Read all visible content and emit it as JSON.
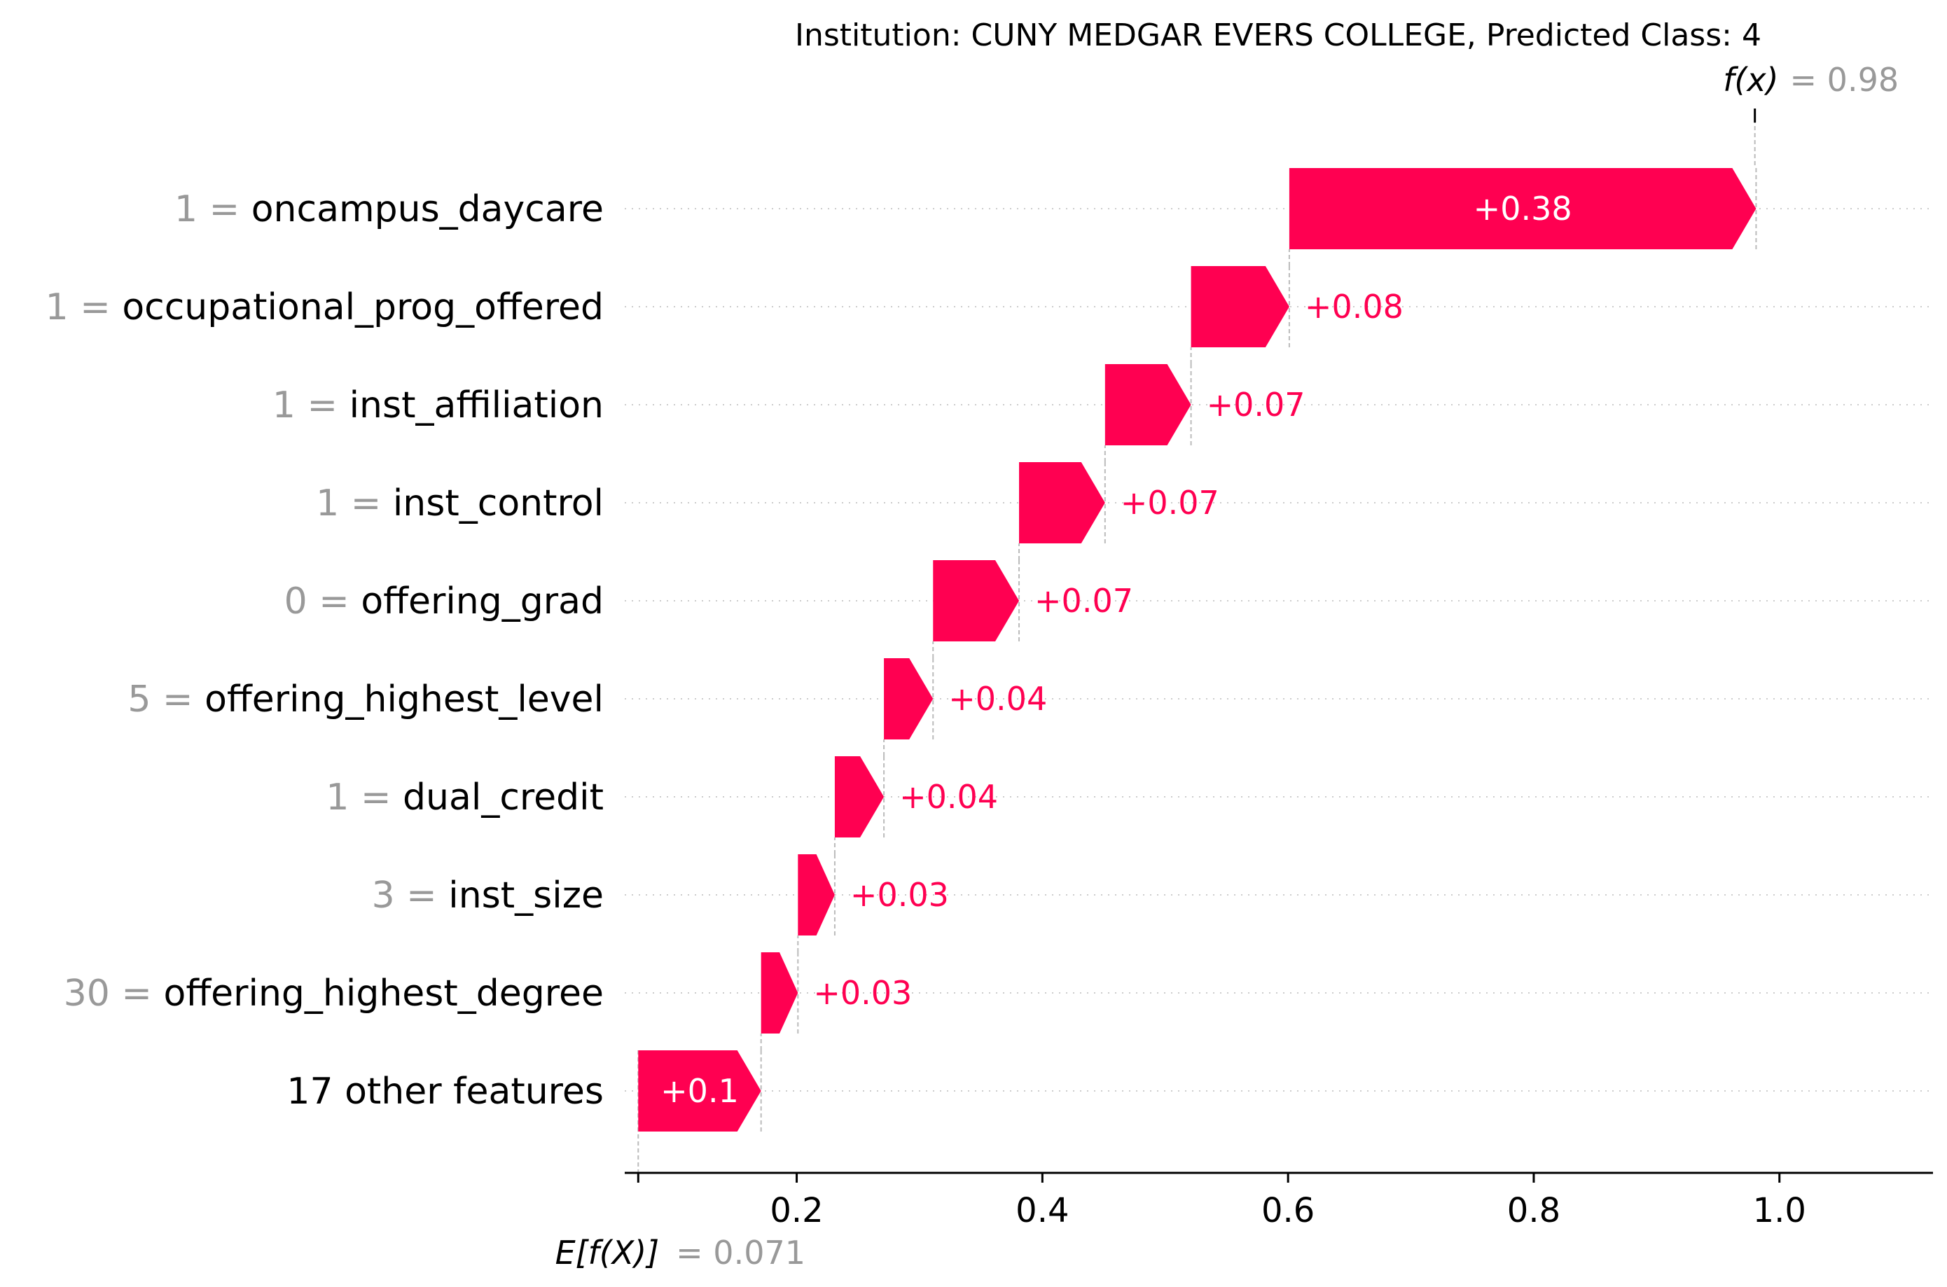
{
  "chart_data": {
    "type": "waterfall",
    "title": "Institution: CUNY MEDGAR EVERS COLLEGE, Predicted Class: 4",
    "base_value": 0.071,
    "base_label": "E[f(X)]",
    "base_value_text": "= 0.071",
    "output_value": 0.98,
    "output_label": "f(x)",
    "output_value_text": "= 0.98",
    "features": [
      {
        "value": "1",
        "name": "oncampus_daycare",
        "contribution": 0.38,
        "label": "+0.38"
      },
      {
        "value": "1",
        "name": "occupational_prog_offered",
        "contribution": 0.08,
        "label": "+0.08"
      },
      {
        "value": "1",
        "name": "inst_affiliation",
        "contribution": 0.07,
        "label": "+0.07"
      },
      {
        "value": "1",
        "name": "inst_control",
        "contribution": 0.07,
        "label": "+0.07"
      },
      {
        "value": "0",
        "name": "offering_grad",
        "contribution": 0.07,
        "label": "+0.07"
      },
      {
        "value": "5",
        "name": "offering_highest_level",
        "contribution": 0.04,
        "label": "+0.04"
      },
      {
        "value": "1",
        "name": "dual_credit",
        "contribution": 0.04,
        "label": "+0.04"
      },
      {
        "value": "3",
        "name": "inst_size",
        "contribution": 0.03,
        "label": "+0.03"
      },
      {
        "value": "30",
        "name": "offering_highest_degree",
        "contribution": 0.03,
        "label": "+0.03"
      },
      {
        "value": "",
        "name": "17 other features",
        "contribution": 0.1,
        "label": "+0.1"
      }
    ],
    "x_ticks": [
      0.2,
      0.4,
      0.6,
      0.8,
      1.0
    ],
    "x_tick_labels": [
      "0.2",
      "0.4",
      "0.6",
      "0.8",
      "1.0"
    ],
    "xlim": [
      0.06,
      1.125
    ],
    "colors": {
      "positive": "#ff0051",
      "value_gray": "#999999",
      "gridline": "#cccccc"
    }
  }
}
